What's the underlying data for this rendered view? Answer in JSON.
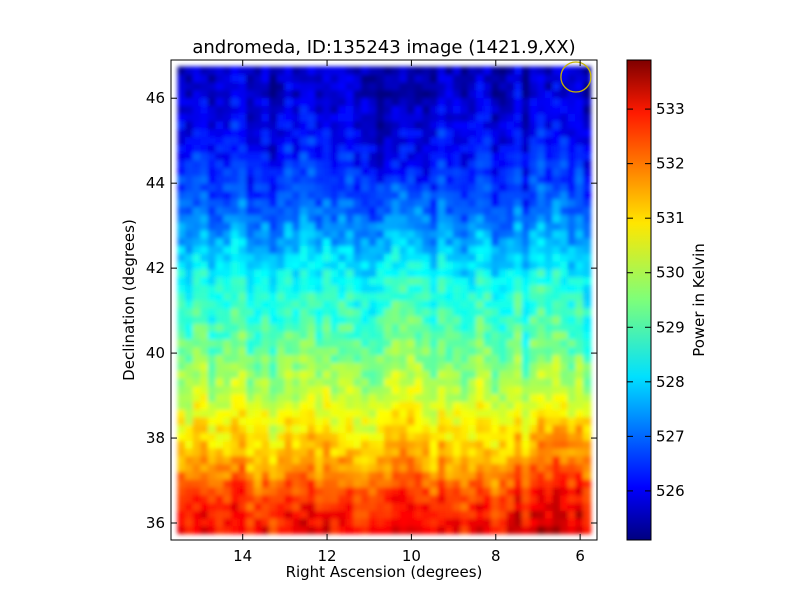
{
  "chart_data": {
    "type": "heatmap",
    "title": "andromeda, ID:135243 image (1421.9,XX)",
    "xlabel": "Right Ascension (degrees)",
    "ylabel": "Declination (degrees)",
    "xlim": [
      15.7,
      5.6
    ],
    "ylim": [
      35.6,
      46.9
    ],
    "x_ticks": [
      14,
      12,
      10,
      8,
      6
    ],
    "y_ticks": [
      36,
      38,
      40,
      42,
      44,
      46
    ],
    "x_tick_labels": [
      "14",
      "12",
      "10",
      "8",
      "6"
    ],
    "y_tick_labels": [
      "36",
      "38",
      "40",
      "42",
      "44",
      "46"
    ],
    "colormap": "jet",
    "colorbar": {
      "label": "Power in Kelvin",
      "range": [
        525.1,
        533.9
      ],
      "ticks": [
        526,
        527,
        528,
        529,
        530,
        531,
        532,
        533
      ],
      "tick_labels": [
        "526",
        "527",
        "528",
        "529",
        "530",
        "531",
        "532",
        "533"
      ]
    },
    "data_extent": {
      "ra": [
        15.55,
        5.75
      ],
      "dec": [
        35.75,
        46.75
      ]
    },
    "value_trend_by_dec": [
      {
        "dec": 35.8,
        "value": 532.8
      },
      {
        "dec": 36.5,
        "value": 532.3
      },
      {
        "dec": 37.5,
        "value": 531.2
      },
      {
        "dec": 38.5,
        "value": 530.4
      },
      {
        "dec": 39.5,
        "value": 529.7
      },
      {
        "dec": 40.5,
        "value": 529.0
      },
      {
        "dec": 41.5,
        "value": 528.6
      },
      {
        "dec": 42.5,
        "value": 527.8
      },
      {
        "dec": 43.5,
        "value": 526.9
      },
      {
        "dec": 44.5,
        "value": 526.4
      },
      {
        "dec": 45.5,
        "value": 526.0
      },
      {
        "dec": 46.6,
        "value": 525.6
      }
    ],
    "beam_marker": {
      "ra": 6.1,
      "dec": 46.5,
      "color": "#c8b400"
    }
  }
}
